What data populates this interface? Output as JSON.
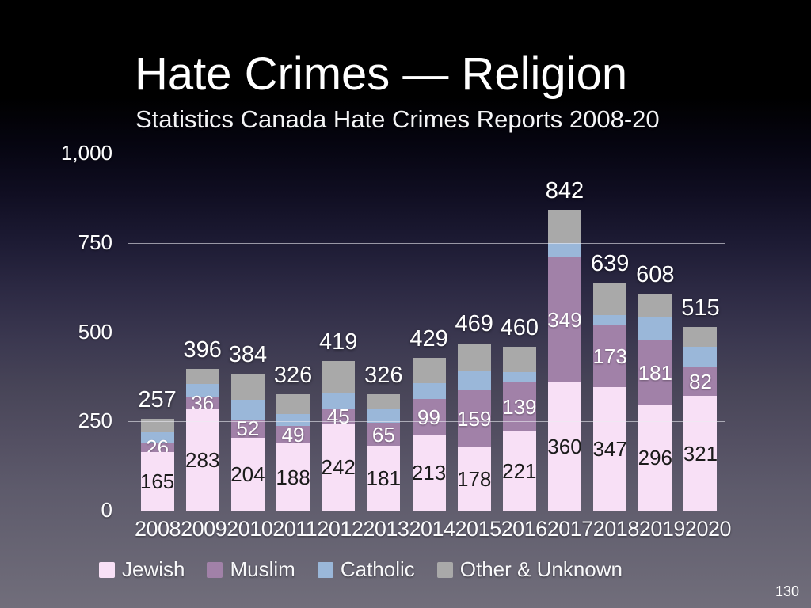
{
  "slide": {
    "title": "Hate Crimes — Religion",
    "subtitle": "Statistics Canada Hate Crimes Reports 2008-20",
    "page_number": "130"
  },
  "chart_data": {
    "type": "bar",
    "stacked": true,
    "title": "Hate Crimes — Religion",
    "subtitle": "Statistics Canada Hate Crimes Reports 2008-20",
    "categories": [
      "2008",
      "2009",
      "2010",
      "2011",
      "2012",
      "2013",
      "2014",
      "2015",
      "2016",
      "2017",
      "2018",
      "2019",
      "2020"
    ],
    "series": [
      {
        "name": "Jewish",
        "color": "#f8e0f6",
        "values": [
          165,
          283,
          204,
          188,
          242,
          181,
          213,
          178,
          221,
          360,
          347,
          296,
          321
        ],
        "labels_shown": true,
        "label_color": "#1b1b1b",
        "values_estimated": false
      },
      {
        "name": "Muslim",
        "color": "#a181a8",
        "values": [
          26,
          36,
          52,
          49,
          45,
          65,
          99,
          159,
          139,
          349,
          173,
          181,
          82
        ],
        "labels_shown": true,
        "label_color": "#ffffff",
        "values_estimated": false
      },
      {
        "name": "Catholic",
        "color": "#9ab7d9",
        "values": [
          29,
          36,
          54,
          34,
          41,
          38,
          45,
          55,
          28,
          40,
          27,
          65,
          55
        ],
        "labels_shown": false,
        "label_color": "#ffffff",
        "values_estimated": true
      },
      {
        "name": "Other & Unknown",
        "color": "#a9a9a9",
        "values": [
          37,
          41,
          74,
          55,
          91,
          42,
          72,
          77,
          72,
          93,
          92,
          66,
          57
        ],
        "labels_shown": false,
        "label_color": "#ffffff",
        "values_estimated": true
      }
    ],
    "totals": [
      257,
      396,
      384,
      326,
      419,
      326,
      429,
      469,
      460,
      842,
      639,
      608,
      515
    ],
    "totals_shown": true,
    "xlabel": "",
    "ylabel": "",
    "ylim": [
      0,
      1000
    ],
    "yticks": [
      {
        "value": 0,
        "label": "0"
      },
      {
        "value": 250,
        "label": "250"
      },
      {
        "value": 500,
        "label": "500"
      },
      {
        "value": 750,
        "label": "750"
      },
      {
        "value": 1000,
        "label": "1,000"
      }
    ],
    "grid": true,
    "legend_position": "bottom"
  }
}
